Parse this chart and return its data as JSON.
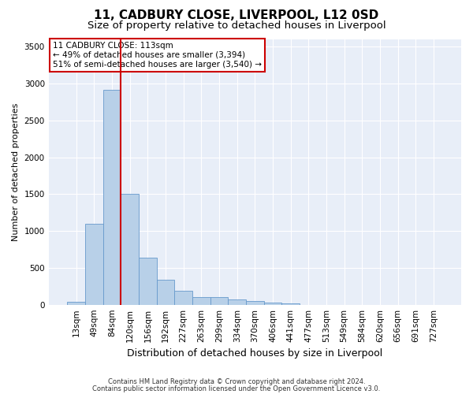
{
  "title1": "11, CADBURY CLOSE, LIVERPOOL, L12 0SD",
  "title2": "Size of property relative to detached houses in Liverpool",
  "xlabel": "Distribution of detached houses by size in Liverpool",
  "ylabel": "Number of detached properties",
  "footnote1": "Contains HM Land Registry data © Crown copyright and database right 2024.",
  "footnote2": "Contains public sector information licensed under the Open Government Licence v3.0.",
  "bar_labels": [
    "13sqm",
    "49sqm",
    "84sqm",
    "120sqm",
    "156sqm",
    "192sqm",
    "227sqm",
    "263sqm",
    "299sqm",
    "334sqm",
    "370sqm",
    "406sqm",
    "441sqm",
    "477sqm",
    "513sqm",
    "549sqm",
    "584sqm",
    "620sqm",
    "656sqm",
    "691sqm",
    "727sqm"
  ],
  "bar_values": [
    40,
    1100,
    2920,
    1500,
    640,
    340,
    190,
    100,
    100,
    75,
    45,
    30,
    20,
    0,
    0,
    0,
    0,
    0,
    0,
    0,
    0
  ],
  "bar_color": "#b8d0e8",
  "bar_edge_color": "#6699cc",
  "vline_color": "#cc0000",
  "annotation_text": "11 CADBURY CLOSE: 113sqm\n← 49% of detached houses are smaller (3,394)\n51% of semi-detached houses are larger (3,540) →",
  "annotation_box_color": "#ffffff",
  "annotation_box_edge_color": "#cc0000",
  "ylim": [
    0,
    3600
  ],
  "yticks": [
    0,
    500,
    1000,
    1500,
    2000,
    2500,
    3000,
    3500
  ],
  "bg_color": "#e8eef8",
  "title1_fontsize": 11,
  "title2_fontsize": 9.5,
  "ylabel_fontsize": 8,
  "xlabel_fontsize": 9,
  "tick_fontsize": 7.5,
  "annot_fontsize": 7.5,
  "footnote_fontsize": 6
}
